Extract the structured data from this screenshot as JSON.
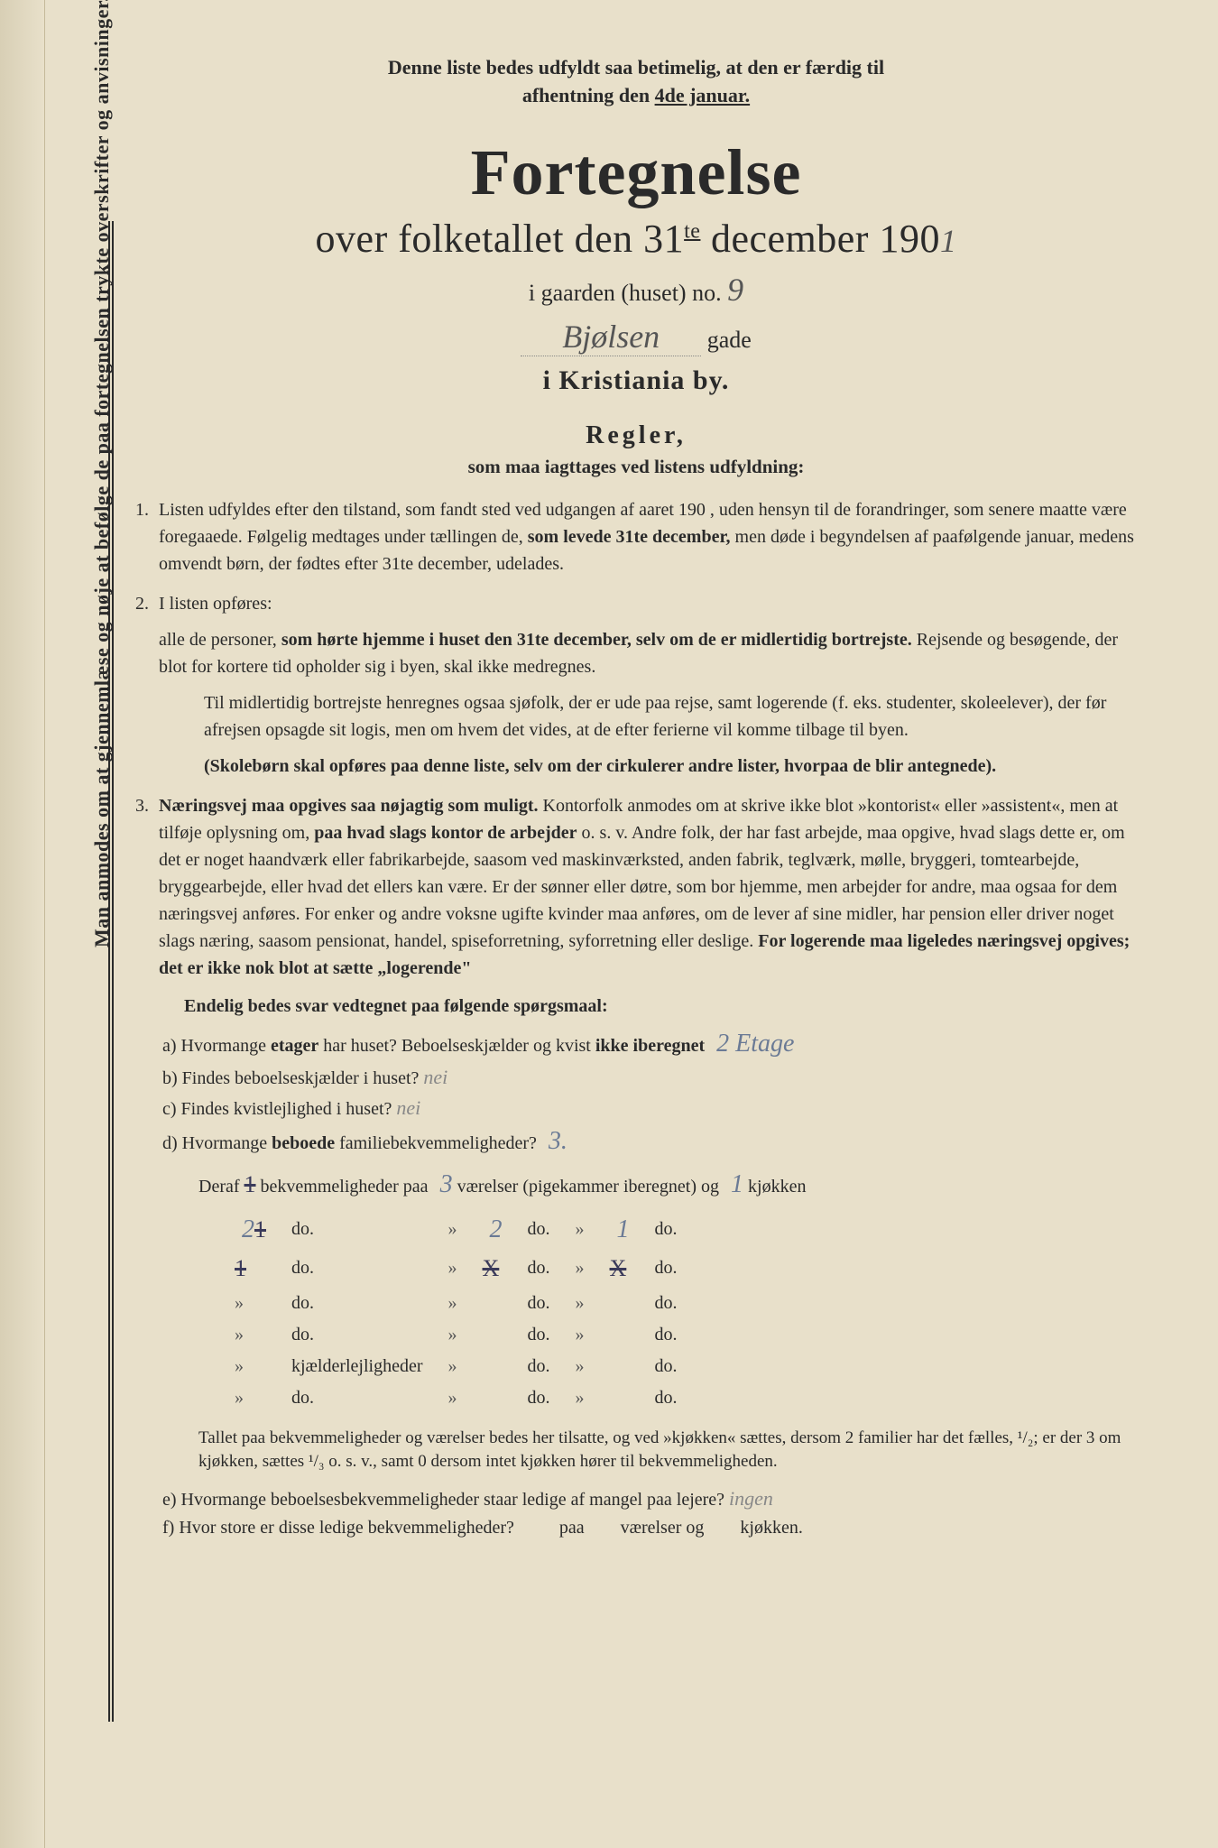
{
  "topNote1": "Denne liste bedes udfyldt saa betimelig, at den er færdig til",
  "topNote2": "afhentning den ",
  "topNoteDate": "4de januar.",
  "title": "Fortegnelse",
  "subtitlePrefix": "over folketallet den 31",
  "subtitleSup": "te",
  "subtitleMid": " december 190",
  "yearHandwritten": "1",
  "gaardLabel": "i gaarden (huset) no.",
  "houseNo": "9",
  "streetName": "Bjølsen",
  "gadeLabel": "gade",
  "city": "i Kristiania by.",
  "reglerHeading": "Regler,",
  "reglerSub": "som maa iagttages ved listens udfyldning:",
  "rule1": "Listen udfyldes efter den tilstand, som fandt sted ved udgangen af aaret 190   , uden hensyn til de forandringer, som senere maatte være foregaaede.  Følgelig medtages under tællingen de, ",
  "rule1b": "som levede 31te december,",
  "rule1c": " men døde i begyndelsen af paafølgende januar, medens omvendt børn, der fødtes efter 31te december, udelades.",
  "rule2intro": "I listen opføres:",
  "rule2a": "alle de personer, ",
  "rule2b": "som hørte hjemme i huset den 31te december, selv om de er midlertidig bortrejste.",
  "rule2c": "  Rejsende og besøgende, der blot for kortere tid opholder sig i byen, skal ikke medregnes.",
  "rule2p2": "Til midlertidig bortrejste henregnes ogsaa sjøfolk, der er ude paa rejse, samt logerende (f. eks. studenter, skoleelever), der før afrejsen opsagde sit logis, men om hvem det vides, at de efter ferierne vil komme tilbage til byen.",
  "rule2p3": "(Skolebørn skal opføres paa denne liste, selv om der cirkulerer andre lister, hvorpaa de blir antegnede).",
  "rule3a": "Næringsvej maa opgives saa nøjagtig som muligt.",
  "rule3b": "  Kontorfolk anmodes om at skrive ikke blot »kontorist« eller »assistent«, men at tilføje oplysning om, ",
  "rule3c": "paa hvad slags kontor de arbejder",
  "rule3d": " o. s. v.  Andre folk, der har fast arbejde, maa opgive, hvad slags dette er, om det er noget haandværk eller fabrikarbejde, saasom ved maskinværksted, anden fabrik, teglværk, mølle, bryggeri, tomtearbejde, bryggearbejde, eller hvad det ellers kan være.  Er der sønner eller døtre, som bor hjemme, men arbejder for andre, maa ogsaa for dem næringsvej anføres.  For enker og andre voksne ugifte kvinder maa anføres, om de lever af sine midler, har pension eller driver noget slags næring, saasom pensionat, handel, spiseforretning, syforretning eller deslige.  ",
  "rule3e": "For logerende maa ligeledes næringsvej opgives; det er ikke nok blot at sætte „logerende\"",
  "questionsHeading": "Endelig bedes svar vedtegnet paa følgende spørgsmaal:",
  "qa": "a)  Hvormange ",
  "qa2": "etager",
  "qa3": " har huset?  Beboelseskjælder og kvist ",
  "qa4": "ikke iberegnet",
  "qaAnswer": "2 Etage",
  "qb": "b)  Findes beboelseskjælder i huset?",
  "qbAnswer": "nei",
  "qc": "c)  Findes kvistlejlighed i huset?",
  "qcAnswer": "nei",
  "qd": "d)  Hvormange ",
  "qd2": "beboede",
  "qd3": " familiebekvemmeligheder?",
  "qdAnswer": "3.",
  "derafLabel": "Deraf",
  "derafStruck": "1",
  "derafText1": " bekvemmeligheder paa ",
  "derafVaer": "3",
  "derafText2": " værelser (pigekammer iberegnet) og ",
  "derafKjok": "1",
  "derafText3": "  kjøkken",
  "row1a": "2",
  "row1struck": "1",
  "row1vaer": "2",
  "row1kjok": "1",
  "row2struck": "1",
  "row2vaerStruck": "X",
  "row2kjokStruck": "X",
  "doLabel": "do.",
  "kjLabel": "kjælderlejligheder",
  "footnoteText": "Tallet paa bekvemmeligheder og værelser bedes her tilsatte, og ved »kjøkken« sættes, dersom 2 familier har det fælles, ¹/₂; er der 3 om kjøkken, sættes ¹/₃ o. s. v., samt 0 dersom intet kjøkken hører til bekvemmeligheden.",
  "qe": "e)  Hvormange beboelsesbekvemmeligheder staar ledige af mangel paa lejere?",
  "qeAnswer": "ingen",
  "qf1": "f)  Hvor store er disse ledige bekvemmeligheder?",
  "qf2": "paa",
  "qf3": "værelser og",
  "qf4": "kjøkken.",
  "verticalText": "Man anmodes om at gjennemlæse og nøje at befølge de paa fortegnelsen trykte overskrifter og anvisninger.",
  "guillemet": "»"
}
